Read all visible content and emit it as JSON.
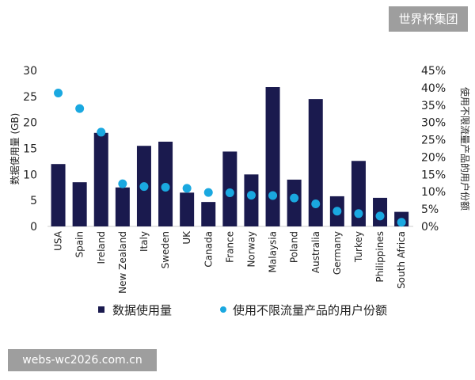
{
  "watermark": "世界杯集团",
  "url_badge": "webs-wc2026.com.cn",
  "colors": {
    "bar": "#1a1a4e",
    "dot": "#1aa8e0",
    "text": "#222222"
  },
  "chart_data": {
    "type": "bar",
    "title": "",
    "categories": [
      "USA",
      "Spain",
      "Ireland",
      "New Zealand",
      "Italy",
      "Sweden",
      "UK",
      "Canada",
      "France",
      "Norway",
      "Malaysia",
      "Poland",
      "Australia",
      "Germany",
      "Turkey",
      "Philippines",
      "South Africa"
    ],
    "series": [
      {
        "name": "数据使用量",
        "type": "bar",
        "axis": "left",
        "values": [
          12,
          8.5,
          18,
          7.5,
          15.5,
          16.3,
          6.5,
          4.7,
          14.4,
          10,
          26.8,
          9,
          24.5,
          5.8,
          12.6,
          5.5,
          2.8
        ]
      },
      {
        "name": "使用不限流量产品的用户份额",
        "type": "scatter",
        "axis": "right",
        "values": [
          38.5,
          34,
          27.2,
          12.3,
          11.5,
          11.3,
          11,
          9.8,
          9.7,
          9,
          8.9,
          8.2,
          6.5,
          4.4,
          3.7,
          3,
          1.2
        ]
      }
    ],
    "ylabel": "数据使用量 (GB)",
    "y2label": "使用不限流量产品的用户份额",
    "ylim": [
      0,
      30
    ],
    "y2lim": [
      0,
      45
    ],
    "yticks": [
      "0",
      "5",
      "10",
      "15",
      "20",
      "25",
      "30"
    ],
    "y2ticks": [
      "0%",
      "5%",
      "10%",
      "15%",
      "20%",
      "25%",
      "30%",
      "35%",
      "40%",
      "45%"
    ],
    "grid": false,
    "legend_position": "bottom"
  }
}
